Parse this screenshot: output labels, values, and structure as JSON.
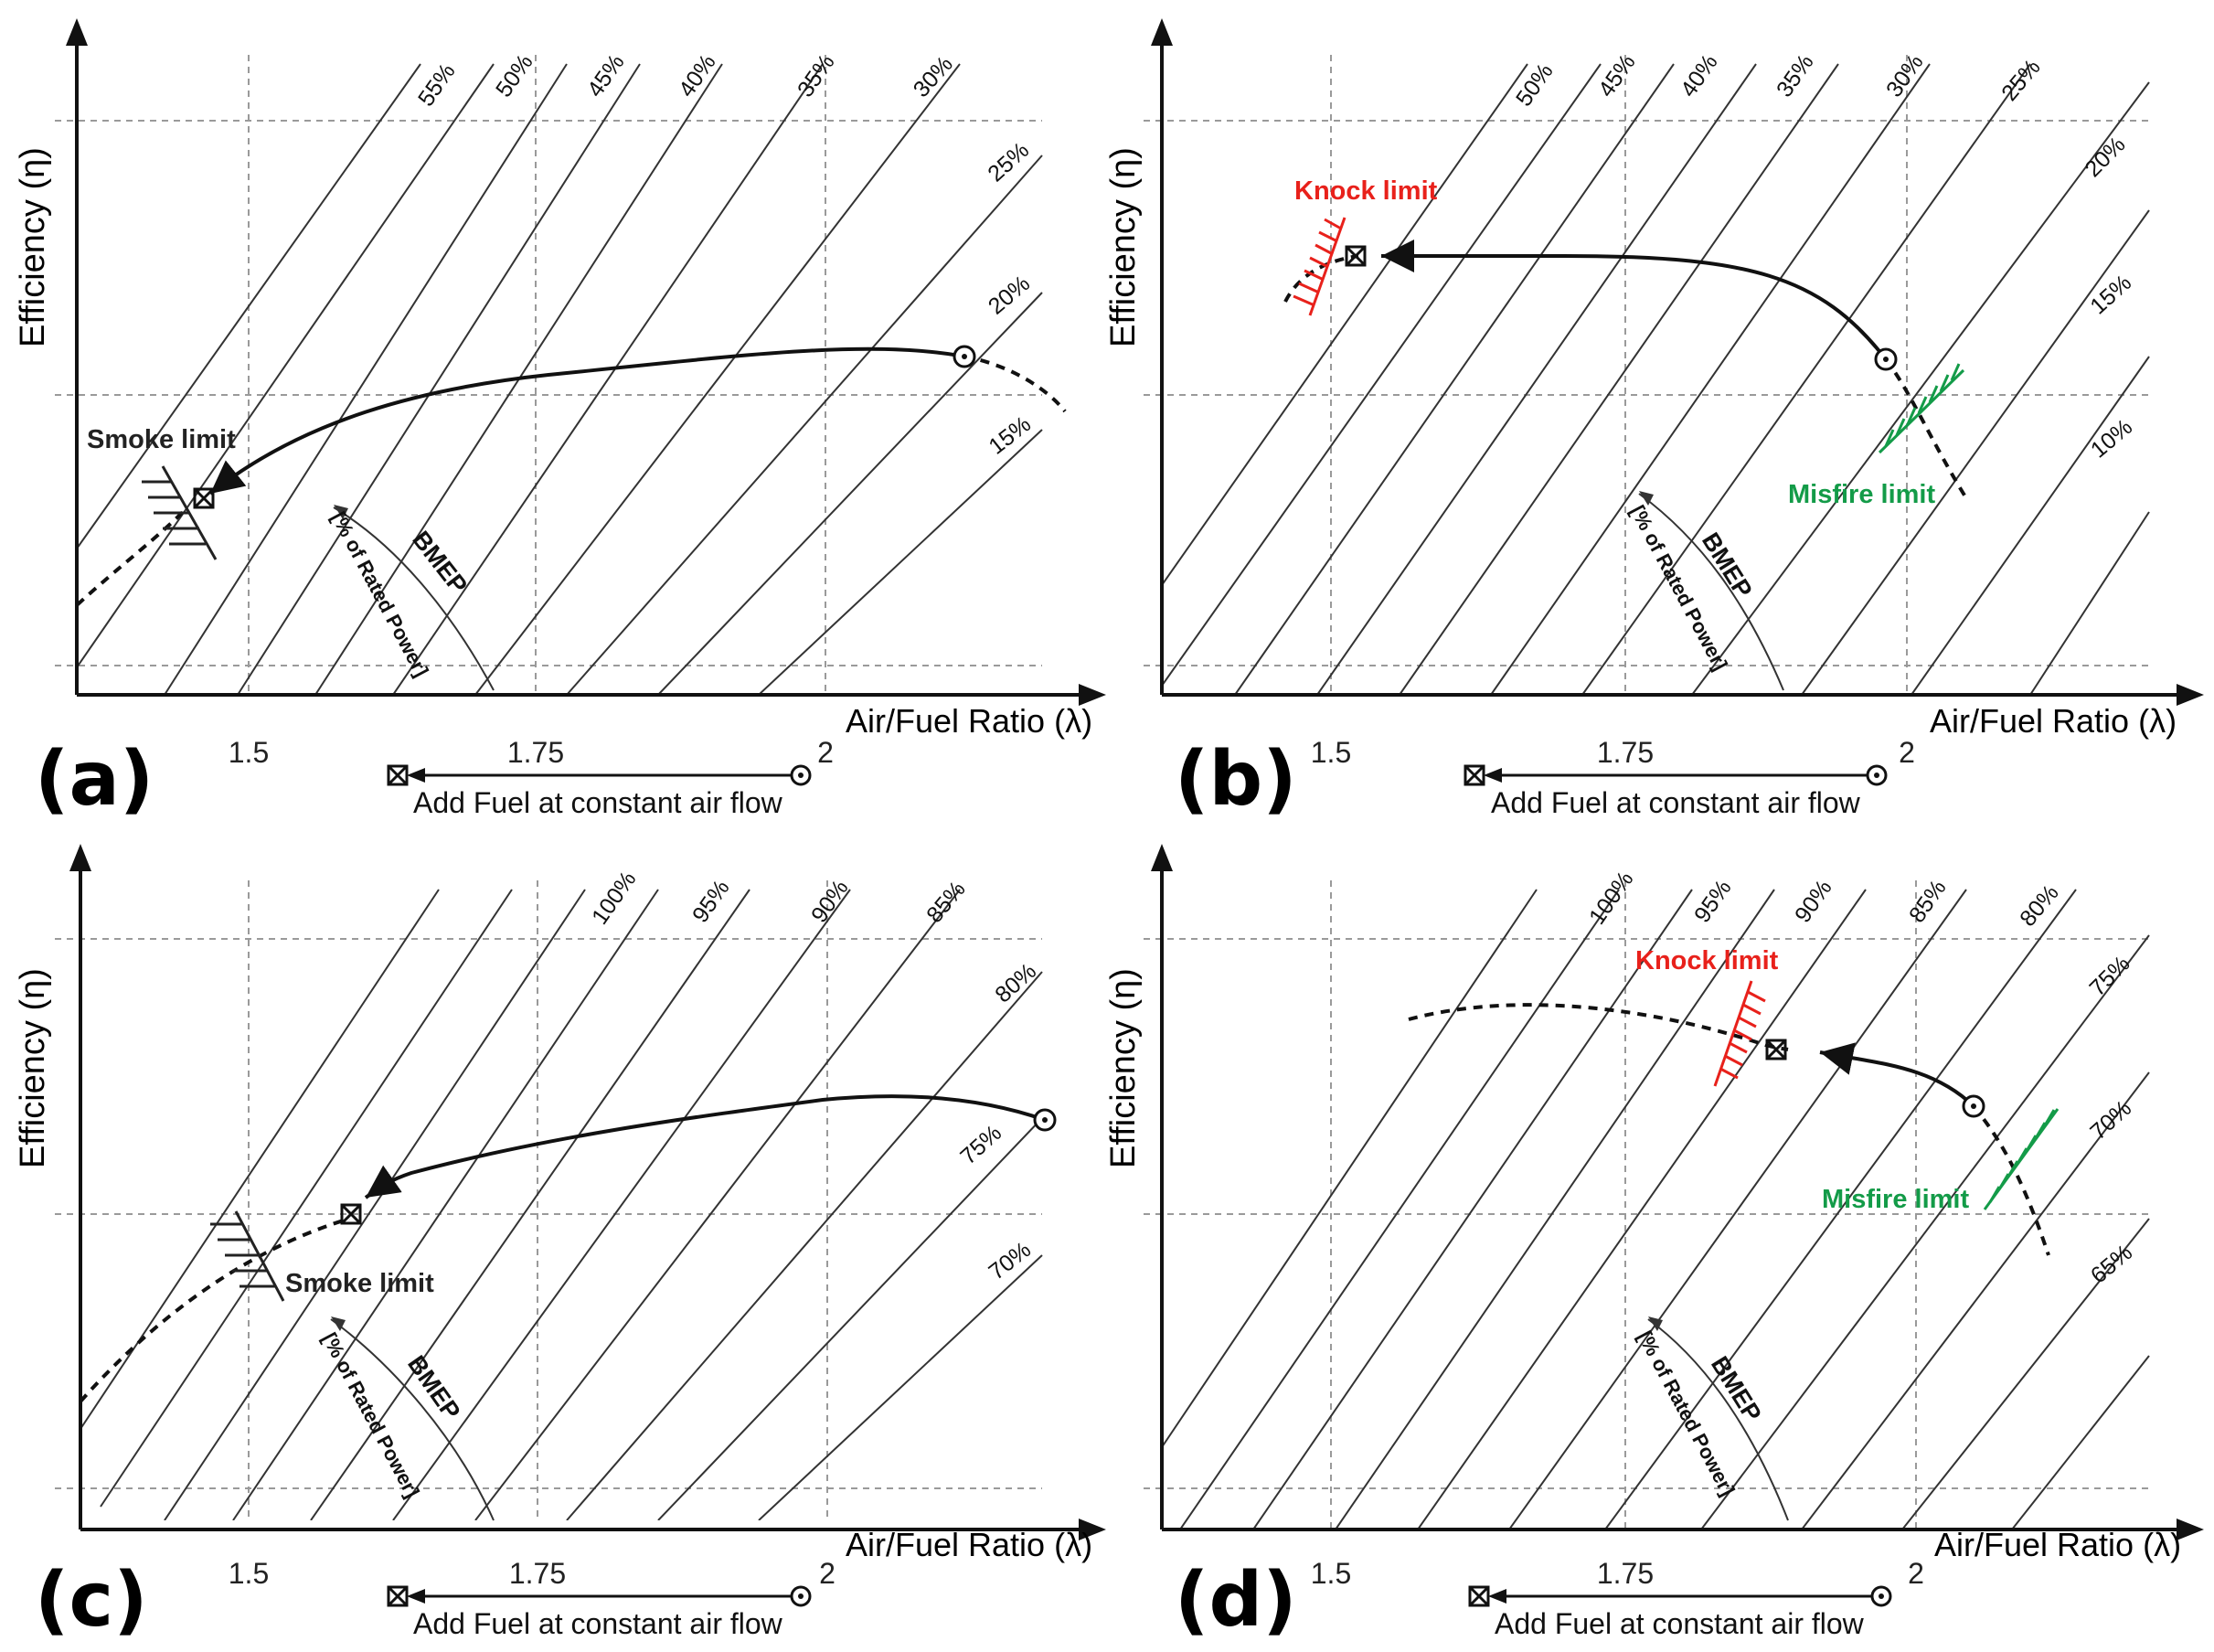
{
  "chart_data": [
    {
      "type": "line",
      "panel": "(a)",
      "ylabel": "Efficiency (η)",
      "xlabel": "Air/Fuel Ratio (λ)",
      "x_ticks": [
        "1.5",
        "1.75",
        "2"
      ],
      "bmep_lines": [
        "55%",
        "50%",
        "45%",
        "40%",
        "35%",
        "30%",
        "25%",
        "20%",
        "15%"
      ],
      "bmep_title": "BMEP",
      "bmep_subtitle": "[% of Rated Power]",
      "limits": [
        {
          "label": "Smoke limit",
          "color": "#222222"
        }
      ],
      "add_fuel_label": "Add Fuel at constant air flow"
    },
    {
      "type": "line",
      "panel": "(b)",
      "ylabel": "Efficiency (η)",
      "xlabel": "Air/Fuel Ratio (λ)",
      "x_ticks": [
        "1.5",
        "1.75",
        "2"
      ],
      "bmep_lines": [
        "50%",
        "45%",
        "40%",
        "35%",
        "30%",
        "25%",
        "20%",
        "15%",
        "10%"
      ],
      "bmep_title": "BMEP",
      "bmep_subtitle": "[% of Rated Power]",
      "limits": [
        {
          "label": "Knock limit",
          "color": "#e8211b"
        },
        {
          "label": "Misfire limit",
          "color": "#139b48"
        }
      ],
      "add_fuel_label": "Add Fuel at constant air flow"
    },
    {
      "type": "line",
      "panel": "(c)",
      "ylabel": "Efficiency (η)",
      "xlabel": "Air/Fuel Ratio (λ)",
      "x_ticks": [
        "1.5",
        "1.75",
        "2"
      ],
      "bmep_lines": [
        "100%",
        "95%",
        "90%",
        "85%",
        "80%",
        "75%",
        "70%"
      ],
      "bmep_title": "BMEP",
      "bmep_subtitle": "[% of Rated Power]",
      "limits": [
        {
          "label": "Smoke limit",
          "color": "#222222"
        }
      ],
      "add_fuel_label": "Add Fuel at constant air flow"
    },
    {
      "type": "line",
      "panel": "(d)",
      "ylabel": "Efficiency (η)",
      "xlabel": "Air/Fuel Ratio (λ)",
      "x_ticks": [
        "1.5",
        "1.75",
        "2"
      ],
      "bmep_lines": [
        "100%",
        "95%",
        "90%",
        "85%",
        "80%",
        "75%",
        "70%",
        "65%"
      ],
      "bmep_title": "BMEP",
      "bmep_subtitle": "[% of Rated Power]",
      "limits": [
        {
          "label": "Knock limit",
          "color": "#e8211b"
        },
        {
          "label": "Misfire limit",
          "color": "#139b48"
        }
      ],
      "add_fuel_label": "Add Fuel at constant air flow"
    }
  ],
  "panel_letters": [
    "(a)",
    "(b)",
    "(c)",
    "(d)"
  ]
}
